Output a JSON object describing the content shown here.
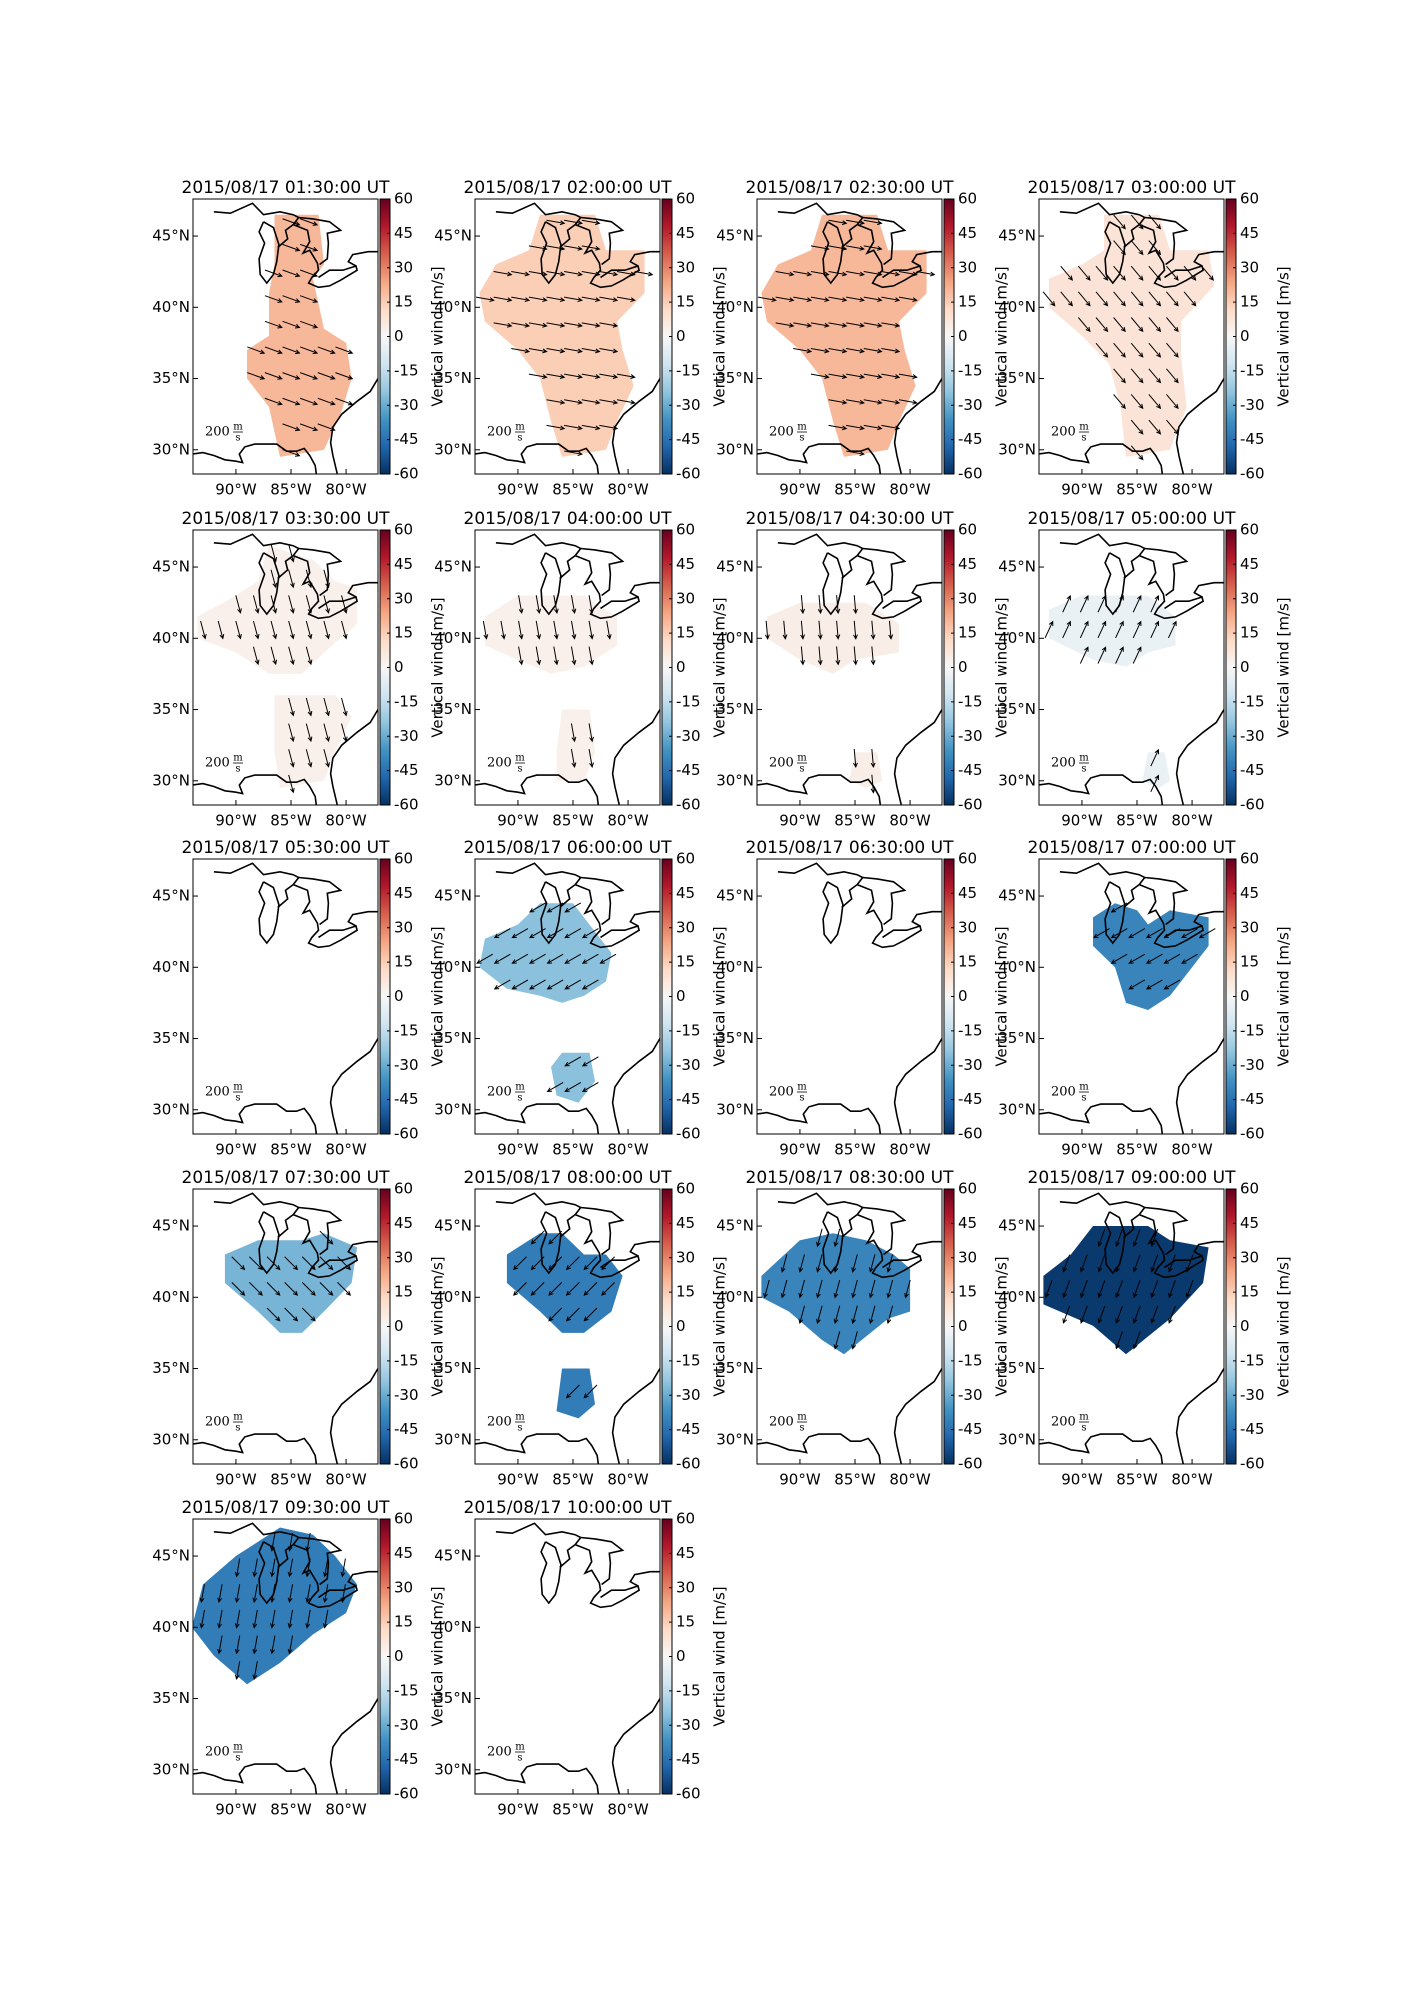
{
  "panels": [
    {
      "title": "2015/08/17 01:30:00 UT",
      "vertical_wind": 20,
      "wind_direction": 110,
      "regions": [
        [
          [
            -86.5,
            46.5
          ],
          [
            -82.5,
            46.5
          ],
          [
            -82,
            43
          ],
          [
            -83,
            42
          ],
          [
            -82,
            38.5
          ],
          [
            -80,
            37.5
          ],
          [
            -79.5,
            35
          ],
          [
            -80.5,
            32.5
          ],
          [
            -82,
            30
          ],
          [
            -86,
            29.5
          ],
          [
            -87,
            33
          ],
          [
            -89,
            35
          ],
          [
            -89,
            37
          ],
          [
            -87,
            38
          ],
          [
            -87,
            41
          ],
          [
            -86.5,
            43
          ]
        ]
      ]
    },
    {
      "title": "2015/08/17 02:00:00 UT",
      "vertical_wind": 15,
      "wind_direction": 100,
      "regions": [
        [
          [
            -88,
            46.5
          ],
          [
            -83,
            46.5
          ],
          [
            -82,
            44
          ],
          [
            -78.5,
            44
          ],
          [
            -78.5,
            41
          ],
          [
            -81,
            39
          ],
          [
            -80.5,
            37
          ],
          [
            -79.5,
            34.5
          ],
          [
            -81,
            32
          ],
          [
            -82,
            30
          ],
          [
            -86,
            29.5
          ],
          [
            -87,
            32
          ],
          [
            -88,
            35
          ],
          [
            -90,
            37
          ],
          [
            -93,
            39
          ],
          [
            -93.5,
            41
          ],
          [
            -92,
            43
          ],
          [
            -89,
            44
          ]
        ]
      ]
    },
    {
      "title": "2015/08/17 02:30:00 UT",
      "vertical_wind": 20,
      "wind_direction": 100,
      "regions": [
        [
          [
            -88,
            46.5
          ],
          [
            -83,
            46.5
          ],
          [
            -82,
            44
          ],
          [
            -78.5,
            44
          ],
          [
            -78.5,
            41
          ],
          [
            -81,
            39
          ],
          [
            -80.5,
            37
          ],
          [
            -79.5,
            34.5
          ],
          [
            -81,
            32
          ],
          [
            -82,
            30
          ],
          [
            -86,
            29.5
          ],
          [
            -87,
            32
          ],
          [
            -88,
            35
          ],
          [
            -90,
            37
          ],
          [
            -93,
            39
          ],
          [
            -93.5,
            41
          ],
          [
            -92,
            43
          ],
          [
            -89,
            44
          ]
        ]
      ]
    },
    {
      "title": "2015/08/17 03:00:00 UT",
      "vertical_wind": 8,
      "wind_direction": 140,
      "regions": [
        [
          [
            -88,
            46.5
          ],
          [
            -83,
            46.5
          ],
          [
            -82,
            44
          ],
          [
            -78.5,
            44
          ],
          [
            -78,
            41.5
          ],
          [
            -81,
            39
          ],
          [
            -81,
            36.5
          ],
          [
            -80.5,
            33
          ],
          [
            -82,
            30
          ],
          [
            -86,
            29.5
          ],
          [
            -86.5,
            33
          ],
          [
            -87.5,
            36
          ],
          [
            -90,
            38
          ],
          [
            -93,
            40
          ],
          [
            -93,
            42
          ],
          [
            -90,
            43
          ],
          [
            -88,
            44
          ]
        ]
      ]
    },
    {
      "title": "2015/08/17 03:30:00 UT",
      "vertical_wind": 3,
      "wind_direction": 165,
      "regions": [
        [
          [
            -87,
            46.5
          ],
          [
            -83,
            45.5
          ],
          [
            -81,
            44
          ],
          [
            -79,
            43.5
          ],
          [
            -79,
            41
          ],
          [
            -82,
            39
          ],
          [
            -84,
            37.5
          ],
          [
            -87,
            37.5
          ],
          [
            -90,
            39
          ],
          [
            -93.5,
            40
          ],
          [
            -93.5,
            41.5
          ],
          [
            -90,
            43
          ],
          [
            -88,
            44
          ]
        ],
        [
          [
            -86.5,
            36
          ],
          [
            -81,
            36
          ],
          [
            -79.5,
            34.5
          ],
          [
            -81,
            32
          ],
          [
            -82,
            30
          ],
          [
            -86,
            29.5
          ],
          [
            -86.5,
            32
          ]
        ]
      ]
    },
    {
      "title": "2015/08/17 04:00:00 UT",
      "vertical_wind": 3,
      "wind_direction": 170,
      "regions": [
        [
          [
            -90,
            43
          ],
          [
            -84,
            43
          ],
          [
            -81,
            41.5
          ],
          [
            -81,
            39.5
          ],
          [
            -84,
            38
          ],
          [
            -87,
            37.5
          ],
          [
            -90,
            38.5
          ],
          [
            -93,
            39.5
          ],
          [
            -93,
            41.5
          ]
        ],
        [
          [
            -86,
            35
          ],
          [
            -83.5,
            35
          ],
          [
            -83,
            32
          ],
          [
            -84,
            30
          ],
          [
            -86.5,
            30
          ],
          [
            -86.5,
            32
          ]
        ]
      ]
    },
    {
      "title": "2015/08/17 04:30:00 UT",
      "vertical_wind": 4,
      "wind_direction": 175,
      "regions": [
        [
          [
            -90,
            42.5
          ],
          [
            -84,
            42.5
          ],
          [
            -81,
            41
          ],
          [
            -81,
            39
          ],
          [
            -85,
            38.5
          ],
          [
            -87,
            37.5
          ],
          [
            -90,
            38.5
          ],
          [
            -93,
            40
          ],
          [
            -93,
            41.5
          ]
        ],
        [
          [
            -85,
            32
          ],
          [
            -83,
            32
          ],
          [
            -82.5,
            30
          ],
          [
            -84,
            29.5
          ],
          [
            -85.5,
            30
          ]
        ]
      ]
    },
    {
      "title": "2015/08/17 05:00:00 UT",
      "vertical_wind": -4,
      "wind_direction": 25,
      "regions": [
        [
          [
            -90,
            43
          ],
          [
            -84,
            43
          ],
          [
            -81.5,
            41.5
          ],
          [
            -81.5,
            39.5
          ],
          [
            -84,
            39
          ],
          [
            -86,
            38
          ],
          [
            -89,
            38.5
          ],
          [
            -93,
            40
          ],
          [
            -93,
            42
          ]
        ],
        [
          [
            -84,
            32
          ],
          [
            -82.5,
            32
          ],
          [
            -82,
            30
          ],
          [
            -83,
            29.5
          ],
          [
            -84.5,
            30
          ]
        ]
      ]
    },
    {
      "title": "2015/08/17 05:30:00 UT"
    },
    {
      "title": "2015/08/17 06:00:00 UT",
      "vertical_wind": -25,
      "wind_direction": 240,
      "regions": [
        [
          [
            -88,
            44.5
          ],
          [
            -85,
            44.5
          ],
          [
            -83,
            42.5
          ],
          [
            -81.5,
            41
          ],
          [
            -82,
            39
          ],
          [
            -84,
            38
          ],
          [
            -86,
            37.5
          ],
          [
            -88,
            38
          ],
          [
            -91,
            38.5
          ],
          [
            -93.5,
            40
          ],
          [
            -93,
            42
          ],
          [
            -90,
            43
          ]
        ],
        [
          [
            -86,
            34
          ],
          [
            -83.5,
            34
          ],
          [
            -83,
            32
          ],
          [
            -84.5,
            30.5
          ],
          [
            -86.5,
            31
          ],
          [
            -87,
            33
          ]
        ]
      ]
    },
    {
      "title": "2015/08/17 06:30:00 UT"
    },
    {
      "title": "2015/08/17 07:00:00 UT",
      "vertical_wind": -40,
      "wind_direction": 240,
      "regions": [
        [
          [
            -89,
            43.5
          ],
          [
            -87,
            44.5
          ],
          [
            -85,
            44
          ],
          [
            -84,
            43
          ],
          [
            -82,
            44
          ],
          [
            -78.5,
            43.5
          ],
          [
            -78.5,
            41.5
          ],
          [
            -80,
            40
          ],
          [
            -82,
            38
          ],
          [
            -84,
            37
          ],
          [
            -86,
            37.5
          ],
          [
            -87,
            40
          ],
          [
            -89,
            41.5
          ]
        ]
      ]
    },
    {
      "title": "2015/08/17 07:30:00 UT",
      "vertical_wind": -28,
      "wind_direction": 135,
      "regions": [
        [
          [
            -91,
            43
          ],
          [
            -88,
            44
          ],
          [
            -86,
            44
          ],
          [
            -84,
            44
          ],
          [
            -82,
            44.5
          ],
          [
            -79,
            43.5
          ],
          [
            -79.5,
            41
          ],
          [
            -82,
            39
          ],
          [
            -84,
            37.5
          ],
          [
            -86,
            37.5
          ],
          [
            -88,
            39
          ],
          [
            -91,
            41
          ]
        ]
      ]
    },
    {
      "title": "2015/08/17 08:00:00 UT",
      "vertical_wind": -42,
      "wind_direction": 225,
      "regions": [
        [
          [
            -91,
            43
          ],
          [
            -88,
            44.5
          ],
          [
            -86,
            44.5
          ],
          [
            -84,
            43
          ],
          [
            -82,
            43
          ],
          [
            -80.5,
            41.5
          ],
          [
            -81.5,
            39
          ],
          [
            -84,
            37.5
          ],
          [
            -86,
            37.5
          ],
          [
            -88,
            39
          ],
          [
            -91,
            41
          ]
        ],
        [
          [
            -86,
            35
          ],
          [
            -83.5,
            35
          ],
          [
            -83,
            32.5
          ],
          [
            -84.5,
            31.5
          ],
          [
            -86.5,
            32
          ]
        ]
      ]
    },
    {
      "title": "2015/08/17 08:30:00 UT",
      "vertical_wind": -40,
      "wind_direction": 195,
      "regions": [
        [
          [
            -90,
            44
          ],
          [
            -87,
            44.5
          ],
          [
            -84,
            44
          ],
          [
            -81.5,
            43
          ],
          [
            -80,
            42
          ],
          [
            -80,
            39
          ],
          [
            -82,
            38.5
          ],
          [
            -86,
            36
          ],
          [
            -88,
            37
          ],
          [
            -91,
            39
          ],
          [
            -93.5,
            40
          ],
          [
            -93.5,
            41.5
          ]
        ]
      ]
    },
    {
      "title": "2015/08/17 09:00:00 UT",
      "vertical_wind": -58,
      "wind_direction": 200,
      "regions": [
        [
          [
            -89,
            45
          ],
          [
            -84,
            45
          ],
          [
            -82,
            44
          ],
          [
            -78.5,
            43.5
          ],
          [
            -79,
            41
          ],
          [
            -82,
            38.5
          ],
          [
            -86,
            36
          ],
          [
            -89,
            38
          ],
          [
            -93.5,
            39.5
          ],
          [
            -93.5,
            41.5
          ],
          [
            -91,
            43
          ]
        ]
      ]
    },
    {
      "title": "2015/08/17 09:30:00 UT",
      "vertical_wind": -42,
      "wind_direction": 190,
      "regions": [
        [
          [
            -88,
            46
          ],
          [
            -86,
            47
          ],
          [
            -83,
            46.5
          ],
          [
            -81,
            45
          ],
          [
            -79,
            43
          ],
          [
            -80,
            41
          ],
          [
            -83,
            39.5
          ],
          [
            -86,
            37.5
          ],
          [
            -89,
            36
          ],
          [
            -92,
            38
          ],
          [
            -94,
            40
          ],
          [
            -93,
            43
          ],
          [
            -90,
            45
          ]
        ]
      ]
    },
    {
      "title": "2015/08/17 10:00:00 UT"
    }
  ],
  "map_extent": {
    "lon": [
      -93.9,
      -77.1
    ],
    "lat": [
      28.3,
      47.6
    ]
  },
  "lat_ticks": [
    {
      "value": 45,
      "label": "45°N"
    },
    {
      "value": 40,
      "label": "40°N"
    },
    {
      "value": 35,
      "label": "35°N"
    },
    {
      "value": 30,
      "label": "30°N"
    }
  ],
  "lon_ticks": [
    {
      "value": -90,
      "label": "90°W"
    },
    {
      "value": -85,
      "label": "85°W"
    },
    {
      "value": -80,
      "label": "80°W"
    }
  ],
  "colorbar": {
    "label": "Vertical wind [m/s]",
    "lim": [
      -60,
      60
    ],
    "ticks": [
      60,
      45,
      30,
      15,
      0,
      -15,
      -30,
      -45,
      -60
    ],
    "colormap": [
      "#053061",
      "#2166ac",
      "#4393c3",
      "#92c5de",
      "#d1e5f0",
      "#f7f7f7",
      "#fddbc7",
      "#f4a582",
      "#d6604d",
      "#b2182b",
      "#67001f"
    ]
  },
  "scale_label": "200",
  "scale_unit": [
    "m",
    "s"
  ]
}
